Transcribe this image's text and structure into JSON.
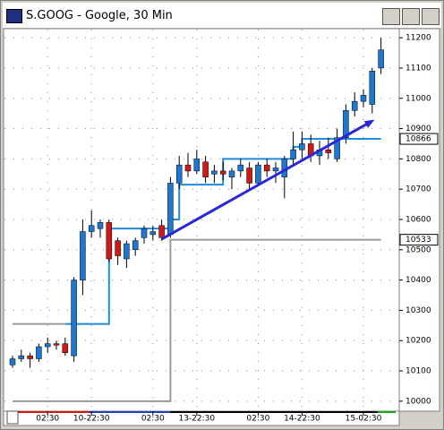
{
  "chart_data": {
    "type": "candlestick",
    "title": "S.GOOG - Google, 30 Min",
    "categories": [
      null,
      null,
      null,
      null,
      "02:30",
      null,
      null,
      null,
      null,
      "10-22:30",
      null,
      null,
      null,
      null,
      null,
      null,
      "02:30",
      null,
      null,
      null,
      null,
      "13-22:30",
      null,
      null,
      null,
      null,
      null,
      null,
      "02:30",
      null,
      null,
      null,
      null,
      "14-22:30",
      null,
      null,
      null,
      null,
      null,
      null,
      "15-02:30",
      null,
      null
    ],
    "open": [
      10120,
      10140,
      10150,
      10140,
      10180,
      10190,
      10190,
      10150,
      10400,
      10560,
      10570,
      10590,
      10530,
      10470,
      10500,
      10540,
      10550,
      10580,
      10550,
      10720,
      10780,
      10760,
      10790,
      10750,
      10760,
      10740,
      10760,
      10770,
      10720,
      10780,
      10760,
      10740,
      10800,
      10830,
      10850,
      10810,
      10830,
      10800,
      10870,
      10960,
      10990,
      10980,
      11100
    ],
    "high": [
      10150,
      10170,
      10160,
      10190,
      10210,
      10200,
      10210,
      10410,
      10600,
      10630,
      10600,
      10600,
      10540,
      10530,
      10540,
      10580,
      10580,
      10600,
      10740,
      10810,
      10820,
      10830,
      10810,
      10780,
      10790,
      10770,
      10800,
      10790,
      10790,
      10800,
      10790,
      10810,
      10890,
      10890,
      10880,
      10860,
      10870,
      10900,
      10980,
      11020,
      11030,
      11100,
      11200
    ],
    "low": [
      10110,
      10130,
      10110,
      10130,
      10160,
      10170,
      10150,
      10130,
      10350,
      10540,
      10540,
      10460,
      10450,
      10440,
      10480,
      10520,
      10530,
      10530,
      10540,
      10700,
      10740,
      10750,
      10720,
      10720,
      10730,
      10700,
      10740,
      10700,
      10710,
      10740,
      10720,
      10670,
      10780,
      10800,
      10790,
      10780,
      10800,
      10790,
      10850,
      10940,
      10970,
      10950,
      11080
    ],
    "close": [
      10140,
      10150,
      10140,
      10180,
      10190,
      10185,
      10160,
      10400,
      10560,
      10580,
      10590,
      10470,
      10480,
      10520,
      10530,
      10570,
      10560,
      10540,
      10720,
      10780,
      10760,
      10800,
      10740,
      10760,
      10750,
      10760,
      10780,
      10720,
      10780,
      10760,
      10770,
      10800,
      10830,
      10850,
      10810,
      10830,
      10820,
      10870,
      10960,
      10990,
      11010,
      11090,
      11160
    ],
    "up_color": "#1e78d2",
    "down_color": "#d01818",
    "lines": [
      {
        "color": "#9a9a9a",
        "values": [
          10255,
          10255,
          10255,
          10255,
          10255,
          10255,
          10255,
          null,
          null,
          null,
          null,
          null,
          null,
          null,
          null,
          null,
          null,
          null,
          null,
          null,
          null,
          null,
          null,
          null,
          null,
          null,
          null,
          null,
          null,
          null,
          null,
          null,
          null,
          null,
          null,
          null,
          null,
          null,
          null,
          null,
          null,
          null,
          null
        ]
      },
      {
        "color": "#9a9a9a",
        "values": [
          10000,
          10000,
          10000,
          10000,
          10000,
          10000,
          10000,
          10000,
          10000,
          10000,
          10000,
          10000,
          10000,
          10000,
          10000,
          10000,
          10000,
          10000,
          10533,
          10533,
          10533,
          10533,
          10533,
          10533,
          10533,
          10533,
          10533,
          10533,
          10533,
          10533,
          10533,
          10533,
          10533,
          10533,
          10533,
          10533,
          10533,
          10533,
          10533,
          10533,
          10533,
          10533,
          10533
        ]
      },
      {
        "color": "#1e8ce0",
        "values": [
          null,
          null,
          null,
          null,
          null,
          null,
          10255,
          10255,
          10255,
          10255,
          10255,
          10570,
          10570,
          10570,
          10570,
          10570,
          10570,
          10570,
          10600,
          10715,
          10715,
          10715,
          10715,
          10715,
          10800,
          10800,
          10800,
          10800,
          10800,
          10800,
          10800,
          10800,
          10840,
          10866,
          10866,
          10866,
          10866,
          10866,
          10866,
          10866,
          10866,
          10866,
          10866
        ]
      }
    ],
    "trendline": {
      "color": "#2828d8",
      "start": {
        "index": 17,
        "value": 10535
      },
      "end": {
        "index": 41,
        "value": 10925
      }
    },
    "price_labels": [
      10866,
      10533
    ],
    "ylim": [
      9970,
      11227
    ],
    "yticks": [
      10000,
      10100,
      10200,
      10300,
      10400,
      10500,
      10600,
      10700,
      10800,
      10900,
      11000,
      11100,
      11200
    ],
    "grid": true
  }
}
